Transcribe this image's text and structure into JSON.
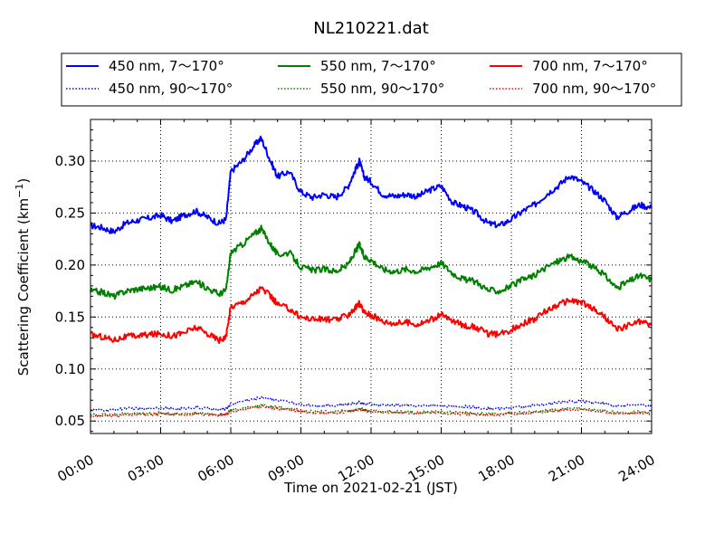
{
  "chart_data": {
    "type": "line",
    "title": "NL210221.dat",
    "xlabel": "Time on 2021-02-21 (JST)",
    "ylabel": "Scattering Coefficient (km",
    "ylabel_sup": "−1",
    "ylabel_close": ")",
    "xlim": [
      0,
      24
    ],
    "ylim": [
      0.038,
      0.34
    ],
    "grid": true,
    "legend_position": "top",
    "x_ticks": [
      "00:00",
      "03:00",
      "06:00",
      "09:00",
      "12:00",
      "15:00",
      "18:00",
      "21:00",
      "24:00"
    ],
    "x_tick_values": [
      0,
      3,
      6,
      9,
      12,
      15,
      18,
      21,
      24
    ],
    "y_ticks": [
      "0.05",
      "0.10",
      "0.15",
      "0.20",
      "0.25",
      "0.30"
    ],
    "y_tick_values": [
      0.05,
      0.1,
      0.15,
      0.2,
      0.25,
      0.3
    ],
    "x": [
      0,
      0.5,
      1,
      1.5,
      2,
      2.5,
      3,
      3.5,
      4,
      4.5,
      5,
      5.5,
      5.8,
      6,
      6.5,
      7,
      7.3,
      7.7,
      8,
      8.5,
      9,
      9.5,
      10,
      10.5,
      11,
      11.3,
      11.5,
      11.7,
      12,
      12.5,
      13,
      13.5,
      14,
      14.5,
      15,
      15.5,
      16,
      16.5,
      17,
      17.5,
      18,
      18.5,
      19,
      19.5,
      20,
      20.5,
      21,
      21.5,
      22,
      22.5,
      23,
      23.5,
      24
    ],
    "series": [
      {
        "name": "450 nm, 7～170°",
        "color": "#0000ff",
        "style": "solid",
        "values": [
          0.238,
          0.236,
          0.232,
          0.24,
          0.243,
          0.245,
          0.248,
          0.242,
          0.248,
          0.252,
          0.246,
          0.24,
          0.244,
          0.29,
          0.3,
          0.315,
          0.322,
          0.3,
          0.285,
          0.29,
          0.27,
          0.265,
          0.268,
          0.265,
          0.275,
          0.29,
          0.3,
          0.285,
          0.28,
          0.268,
          0.266,
          0.268,
          0.266,
          0.272,
          0.276,
          0.26,
          0.256,
          0.25,
          0.24,
          0.238,
          0.244,
          0.252,
          0.258,
          0.268,
          0.276,
          0.286,
          0.28,
          0.272,
          0.262,
          0.246,
          0.252,
          0.258,
          0.255
        ]
      },
      {
        "name": "450 nm, 90～170°",
        "color": "#0000ff",
        "style": "dotted",
        "values": [
          0.061,
          0.06,
          0.061,
          0.062,
          0.062,
          0.062,
          0.063,
          0.062,
          0.062,
          0.063,
          0.062,
          0.061,
          0.062,
          0.066,
          0.069,
          0.071,
          0.073,
          0.071,
          0.07,
          0.068,
          0.066,
          0.065,
          0.065,
          0.065,
          0.066,
          0.067,
          0.068,
          0.067,
          0.066,
          0.065,
          0.065,
          0.065,
          0.064,
          0.065,
          0.065,
          0.064,
          0.064,
          0.063,
          0.062,
          0.062,
          0.063,
          0.064,
          0.065,
          0.066,
          0.068,
          0.069,
          0.069,
          0.068,
          0.067,
          0.064,
          0.065,
          0.066,
          0.065
        ]
      },
      {
        "name": "550 nm, 7～170°",
        "color": "#008000",
        "style": "solid",
        "values": [
          0.175,
          0.174,
          0.17,
          0.175,
          0.177,
          0.178,
          0.179,
          0.176,
          0.18,
          0.184,
          0.178,
          0.172,
          0.176,
          0.212,
          0.22,
          0.23,
          0.235,
          0.22,
          0.21,
          0.212,
          0.198,
          0.195,
          0.196,
          0.194,
          0.2,
          0.212,
          0.22,
          0.208,
          0.205,
          0.196,
          0.194,
          0.196,
          0.194,
          0.198,
          0.202,
          0.192,
          0.186,
          0.184,
          0.176,
          0.175,
          0.18,
          0.186,
          0.19,
          0.198,
          0.204,
          0.208,
          0.204,
          0.198,
          0.19,
          0.178,
          0.184,
          0.19,
          0.186
        ]
      },
      {
        "name": "550 nm, 90～170°",
        "color": "#008000",
        "style": "dotted",
        "values": [
          0.056,
          0.056,
          0.056,
          0.057,
          0.057,
          0.057,
          0.058,
          0.057,
          0.057,
          0.058,
          0.057,
          0.056,
          0.057,
          0.06,
          0.062,
          0.064,
          0.065,
          0.064,
          0.063,
          0.062,
          0.06,
          0.059,
          0.059,
          0.059,
          0.06,
          0.061,
          0.062,
          0.061,
          0.06,
          0.059,
          0.059,
          0.059,
          0.058,
          0.059,
          0.059,
          0.058,
          0.058,
          0.057,
          0.057,
          0.057,
          0.058,
          0.058,
          0.059,
          0.06,
          0.061,
          0.062,
          0.062,
          0.061,
          0.06,
          0.058,
          0.058,
          0.059,
          0.058
        ]
      },
      {
        "name": "700 nm, 7～170°",
        "color": "#ff0000",
        "style": "solid",
        "values": [
          0.133,
          0.131,
          0.128,
          0.131,
          0.132,
          0.133,
          0.134,
          0.132,
          0.135,
          0.14,
          0.134,
          0.128,
          0.131,
          0.16,
          0.164,
          0.172,
          0.178,
          0.17,
          0.162,
          0.158,
          0.15,
          0.148,
          0.148,
          0.147,
          0.152,
          0.158,
          0.163,
          0.155,
          0.152,
          0.146,
          0.144,
          0.145,
          0.143,
          0.147,
          0.152,
          0.146,
          0.142,
          0.14,
          0.134,
          0.133,
          0.138,
          0.144,
          0.148,
          0.156,
          0.162,
          0.166,
          0.164,
          0.158,
          0.15,
          0.138,
          0.142,
          0.146,
          0.142
        ]
      },
      {
        "name": "700 nm, 90～170°",
        "color": "#ff0000",
        "style": "dotted",
        "values": [
          0.055,
          0.055,
          0.055,
          0.056,
          0.056,
          0.056,
          0.057,
          0.056,
          0.056,
          0.057,
          0.056,
          0.055,
          0.056,
          0.059,
          0.061,
          0.063,
          0.064,
          0.063,
          0.062,
          0.061,
          0.059,
          0.058,
          0.058,
          0.058,
          0.059,
          0.06,
          0.061,
          0.06,
          0.059,
          0.058,
          0.058,
          0.058,
          0.057,
          0.058,
          0.058,
          0.057,
          0.057,
          0.056,
          0.056,
          0.056,
          0.057,
          0.057,
          0.058,
          0.059,
          0.06,
          0.061,
          0.061,
          0.06,
          0.059,
          0.057,
          0.057,
          0.058,
          0.057
        ]
      }
    ]
  }
}
